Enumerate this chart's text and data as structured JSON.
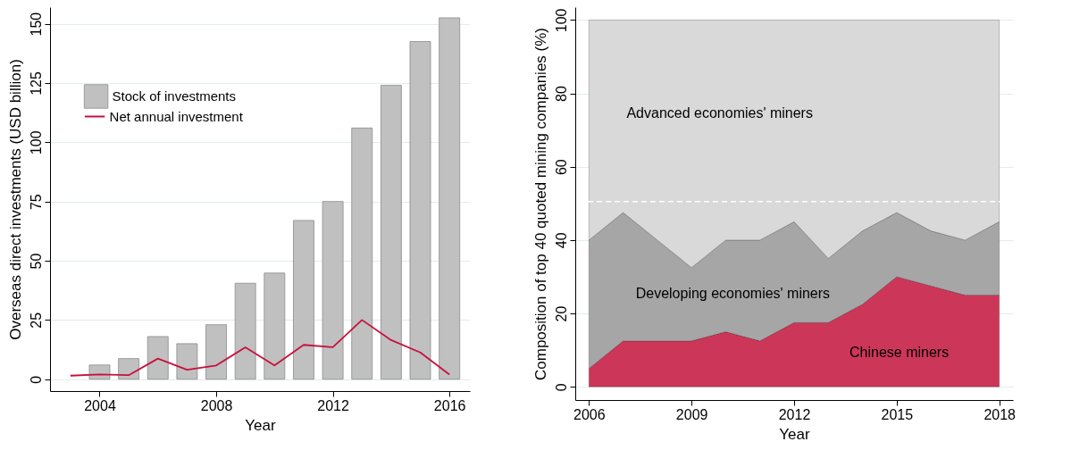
{
  "chart_data": [
    {
      "type": "bar",
      "xlabel": "Year",
      "ylabel": "Overseas direct investments (USD billion)",
      "xlim": [
        2002.3,
        2016.7
      ],
      "xticks": [
        2004,
        2008,
        2012,
        2016
      ],
      "ylim": [
        -5,
        157
      ],
      "yticks": [
        0,
        25,
        50,
        75,
        100,
        125,
        150
      ],
      "grid": "y",
      "legend": "top left",
      "series": [
        {
          "name": "Stock of investments",
          "type": "bar",
          "color": "#c0c0c0",
          "x": [
            2004,
            2005,
            2006,
            2007,
            2008,
            2009,
            2010,
            2011,
            2012,
            2013,
            2014,
            2015,
            2016
          ],
          "values": [
            6,
            8.7,
            18,
            15,
            23,
            40.5,
            44.8,
            67,
            75,
            106,
            124,
            142.5,
            152.5
          ]
        },
        {
          "name": "Net annual investment",
          "type": "line",
          "color": "#c8103e",
          "x": [
            2003,
            2004,
            2005,
            2006,
            2007,
            2008,
            2009,
            2010,
            2011,
            2012,
            2013,
            2014,
            2015,
            2016
          ],
          "values": [
            1.5,
            2,
            1.7,
            8.7,
            4,
            5.8,
            13.5,
            5.8,
            14.5,
            13.5,
            25,
            16.5,
            11.3,
            2
          ]
        }
      ]
    },
    {
      "type": "area",
      "stacked": true,
      "xlabel": "Year",
      "ylabel": "Composition of top 40 quoted mining companies (%)",
      "x": [
        2006,
        2007,
        2008,
        2009,
        2010,
        2011,
        2012,
        2013,
        2014,
        2015,
        2016,
        2017,
        2018
      ],
      "xlim": [
        2005.6,
        2018.4
      ],
      "xticks": [
        2006,
        2009,
        2012,
        2015,
        2018
      ],
      "ylim": [
        -3.6,
        103.5
      ],
      "yticks": [
        0,
        20,
        40,
        60,
        80,
        100
      ],
      "grid": "y",
      "legend": false,
      "ref_lines": [
        {
          "axis": "y",
          "value": 50.5,
          "color": "#ffffff",
          "line_style": "dashed"
        }
      ],
      "series": [
        {
          "name": "Chinese miners",
          "color": "#cc3759",
          "values": [
            5,
            12.5,
            12.5,
            12.5,
            15,
            12.5,
            17.5,
            17.5,
            22.5,
            30,
            27.5,
            25,
            25
          ]
        },
        {
          "name": "Developing economies' miners",
          "color": "#a6a6a6",
          "values": [
            35,
            35,
            27.5,
            20,
            25,
            27.5,
            27.5,
            17.5,
            20,
            17.5,
            15,
            15,
            20
          ]
        },
        {
          "name": "Advanced economies' miners",
          "color": "#d9d9d9",
          "values": [
            60,
            52.5,
            60,
            67.5,
            60,
            60,
            55,
            65,
            57.5,
            52.5,
            57.5,
            60,
            55
          ]
        }
      ]
    }
  ]
}
